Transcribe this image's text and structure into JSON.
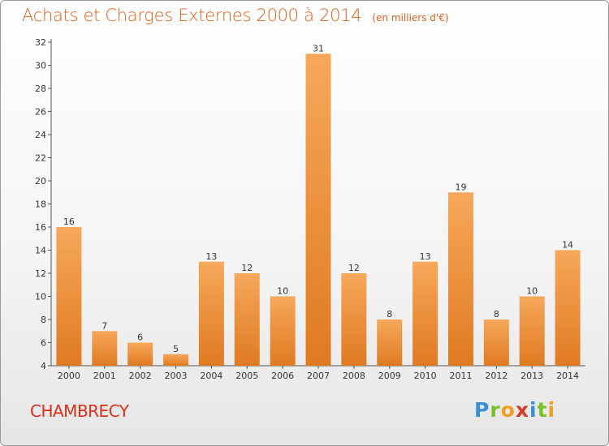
{
  "header": {
    "title": "Achats et Charges Externes 2000 à 2014",
    "unit": "(en milliers d'€)"
  },
  "footer": {
    "commune": "CHAMBRECY",
    "logo": [
      "P",
      "r",
      "o",
      "x",
      "i",
      "t",
      "i"
    ],
    "logo_colors": [
      "#3a8fd4",
      "#7bbf2a",
      "#f0a020",
      "#d63a2a",
      "#3a8fd4",
      "#7bbf2a",
      "#f0a020"
    ]
  },
  "colors": {
    "bar_light": "#f6a85a",
    "bar_dark": "#e07a22",
    "axis": "#555555",
    "grid": "#dddddd"
  },
  "chart_data": {
    "type": "bar",
    "title": "Achats et Charges Externes 2000 à 2014",
    "subtitle": "(en milliers d'€)",
    "categories": [
      "2000",
      "2001",
      "2002",
      "2003",
      "2004",
      "2005",
      "2006",
      "2007",
      "2008",
      "2009",
      "2010",
      "2011",
      "2012",
      "2013",
      "2014"
    ],
    "values": [
      16,
      7,
      6,
      5,
      13,
      12,
      10,
      31,
      12,
      8,
      13,
      19,
      8,
      10,
      14
    ],
    "ylim": [
      4,
      32
    ],
    "yticks": [
      4,
      6,
      8,
      10,
      12,
      14,
      16,
      18,
      20,
      22,
      24,
      26,
      28,
      30,
      32
    ],
    "grid": false,
    "data_labels": true
  }
}
